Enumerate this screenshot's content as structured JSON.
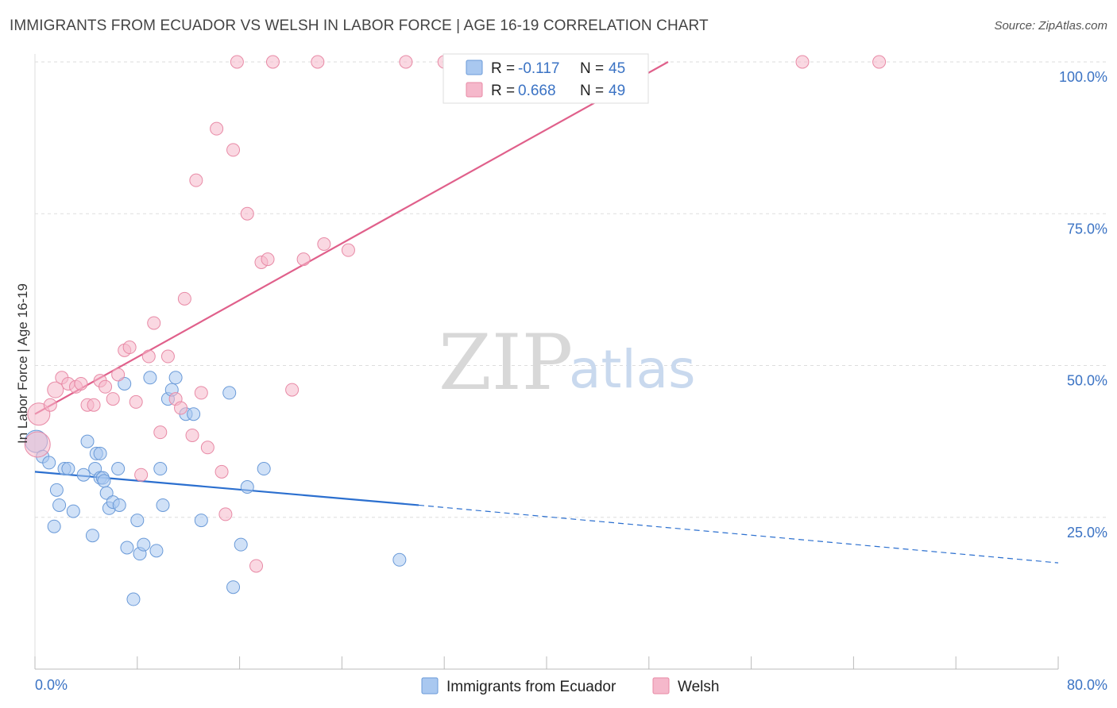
{
  "header": {
    "title": "IMMIGRANTS FROM ECUADOR VS WELSH IN LABOR FORCE | AGE 16-19 CORRELATION CHART",
    "source": "Source: ZipAtlas.com"
  },
  "watermark": {
    "zip": "ZIP",
    "atlas": "atlas"
  },
  "legend_box": {
    "rows": [
      {
        "r_label": "R =",
        "r_value": "-0.117",
        "n_label": "N =",
        "n_value": "45",
        "color": "#a9c8f0",
        "stroke": "#6a9ad8"
      },
      {
        "r_label": "R =",
        "r_value": "0.668",
        "n_label": "N =",
        "n_value": "49",
        "color": "#f5b8cb",
        "stroke": "#e88aa6"
      }
    ]
  },
  "bottom_legend": {
    "items": [
      {
        "label": "Immigrants from Ecuador",
        "color": "#a9c8f0",
        "stroke": "#6a9ad8"
      },
      {
        "label": "Welsh",
        "color": "#f5b8cb",
        "stroke": "#e88aa6"
      }
    ]
  },
  "chart_data": {
    "type": "scatter",
    "title": "IMMIGRANTS FROM ECUADOR VS WELSH IN LABOR FORCE | AGE 16-19 CORRELATION CHART",
    "xlabel": "",
    "ylabel": "In Labor Force | Age 16-19",
    "xlim": [
      0,
      80
    ],
    "ylim": [
      0,
      102
    ],
    "x_tick_labels": [
      "0.0%",
      "80.0%"
    ],
    "y_ticks": [
      25,
      50,
      75,
      100
    ],
    "y_tick_labels": [
      "25.0%",
      "50.0%",
      "75.0%",
      "100.0%"
    ],
    "grid": true,
    "legend_placement": "top-center",
    "series": [
      {
        "name": "Immigrants from Ecuador",
        "color": "#a9c8f0",
        "stroke": "#6a9ad8",
        "line_color": "#2b6fcf",
        "trend": {
          "x0": 0,
          "y0": 32.5,
          "x1": 30,
          "y1": 27,
          "x_dash_end": 80,
          "y_dash_end": 17.5
        },
        "points": [
          [
            0.1,
            37.5,
            14
          ],
          [
            0.6,
            35,
            8
          ],
          [
            1.1,
            34,
            8
          ],
          [
            1.5,
            23.5,
            8
          ],
          [
            1.7,
            29.5,
            8
          ],
          [
            1.9,
            27,
            8
          ],
          [
            2.3,
            33,
            8
          ],
          [
            2.6,
            33,
            8
          ],
          [
            3.0,
            26,
            8
          ],
          [
            3.8,
            32,
            8
          ],
          [
            4.1,
            37.5,
            8
          ],
          [
            4.5,
            22,
            8
          ],
          [
            4.7,
            33,
            8
          ],
          [
            4.8,
            35.5,
            8
          ],
          [
            5.1,
            35.5,
            8
          ],
          [
            5.1,
            31.5,
            8
          ],
          [
            5.3,
            31.5,
            8
          ],
          [
            5.4,
            31,
            8
          ],
          [
            5.6,
            29,
            8
          ],
          [
            5.8,
            26.5,
            8
          ],
          [
            6.1,
            27.5,
            8
          ],
          [
            6.6,
            27,
            8
          ],
          [
            6.5,
            33,
            8
          ],
          [
            7.0,
            47,
            8
          ],
          [
            7.2,
            20,
            8
          ],
          [
            7.7,
            11.5,
            8
          ],
          [
            8.0,
            24.5,
            8
          ],
          [
            8.2,
            19,
            8
          ],
          [
            8.5,
            20.5,
            8
          ],
          [
            9.0,
            48,
            8
          ],
          [
            9.5,
            19.5,
            8
          ],
          [
            9.8,
            33,
            8
          ],
          [
            10.0,
            27,
            8
          ],
          [
            10.4,
            44.5,
            8
          ],
          [
            10.7,
            46,
            8
          ],
          [
            11.0,
            48,
            8
          ],
          [
            11.8,
            42,
            8
          ],
          [
            12.4,
            42,
            8
          ],
          [
            13.0,
            24.5,
            8
          ],
          [
            15.2,
            45.5,
            8
          ],
          [
            15.5,
            13.5,
            8
          ],
          [
            16.1,
            20.5,
            8
          ],
          [
            16.6,
            30,
            8
          ],
          [
            17.9,
            33,
            8
          ],
          [
            28.5,
            18,
            8
          ]
        ]
      },
      {
        "name": "Welsh",
        "color": "#f5b8cb",
        "stroke": "#e88aa6",
        "line_color": "#e0608b",
        "trend": {
          "x0": 0,
          "y0": 42,
          "x1": 49.5,
          "y1": 100
        },
        "points": [
          [
            0.2,
            37,
            16
          ],
          [
            0.3,
            42,
            14
          ],
          [
            1.2,
            43.5,
            8
          ],
          [
            1.6,
            46,
            10
          ],
          [
            2.1,
            48,
            8
          ],
          [
            2.6,
            47,
            8
          ],
          [
            3.2,
            46.5,
            8
          ],
          [
            3.6,
            47,
            8
          ],
          [
            4.1,
            43.5,
            8
          ],
          [
            4.6,
            43.5,
            8
          ],
          [
            5.1,
            47.5,
            8
          ],
          [
            5.5,
            46.5,
            8
          ],
          [
            6.1,
            44.5,
            8
          ],
          [
            6.5,
            48.5,
            8
          ],
          [
            7.0,
            52.5,
            8
          ],
          [
            7.4,
            53,
            8
          ],
          [
            7.9,
            44,
            8
          ],
          [
            8.3,
            32,
            8
          ],
          [
            8.9,
            51.5,
            8
          ],
          [
            9.3,
            57,
            8
          ],
          [
            9.8,
            39,
            8
          ],
          [
            10.4,
            51.5,
            8
          ],
          [
            11.0,
            44.5,
            8
          ],
          [
            11.4,
            43,
            8
          ],
          [
            11.7,
            61,
            8
          ],
          [
            12.3,
            38.5,
            8
          ],
          [
            12.6,
            80.5,
            8
          ],
          [
            13.0,
            45.5,
            8
          ],
          [
            13.5,
            36.5,
            8
          ],
          [
            14.2,
            89,
            8
          ],
          [
            14.6,
            32.5,
            8
          ],
          [
            14.9,
            25.5,
            8
          ],
          [
            15.5,
            85.5,
            8
          ],
          [
            15.8,
            100,
            8
          ],
          [
            16.6,
            75,
            8
          ],
          [
            17.3,
            17,
            8
          ],
          [
            17.7,
            67,
            8
          ],
          [
            18.2,
            67.5,
            8
          ],
          [
            18.6,
            100,
            8
          ],
          [
            20.1,
            46,
            8
          ],
          [
            21.0,
            67.5,
            8
          ],
          [
            22.1,
            100,
            8
          ],
          [
            22.6,
            70,
            8
          ],
          [
            24.5,
            69,
            8
          ],
          [
            29.0,
            100,
            8
          ],
          [
            32.0,
            100,
            8
          ],
          [
            44.0,
            100,
            8
          ],
          [
            60.0,
            100,
            8
          ],
          [
            66.0,
            100,
            8
          ]
        ]
      }
    ]
  }
}
